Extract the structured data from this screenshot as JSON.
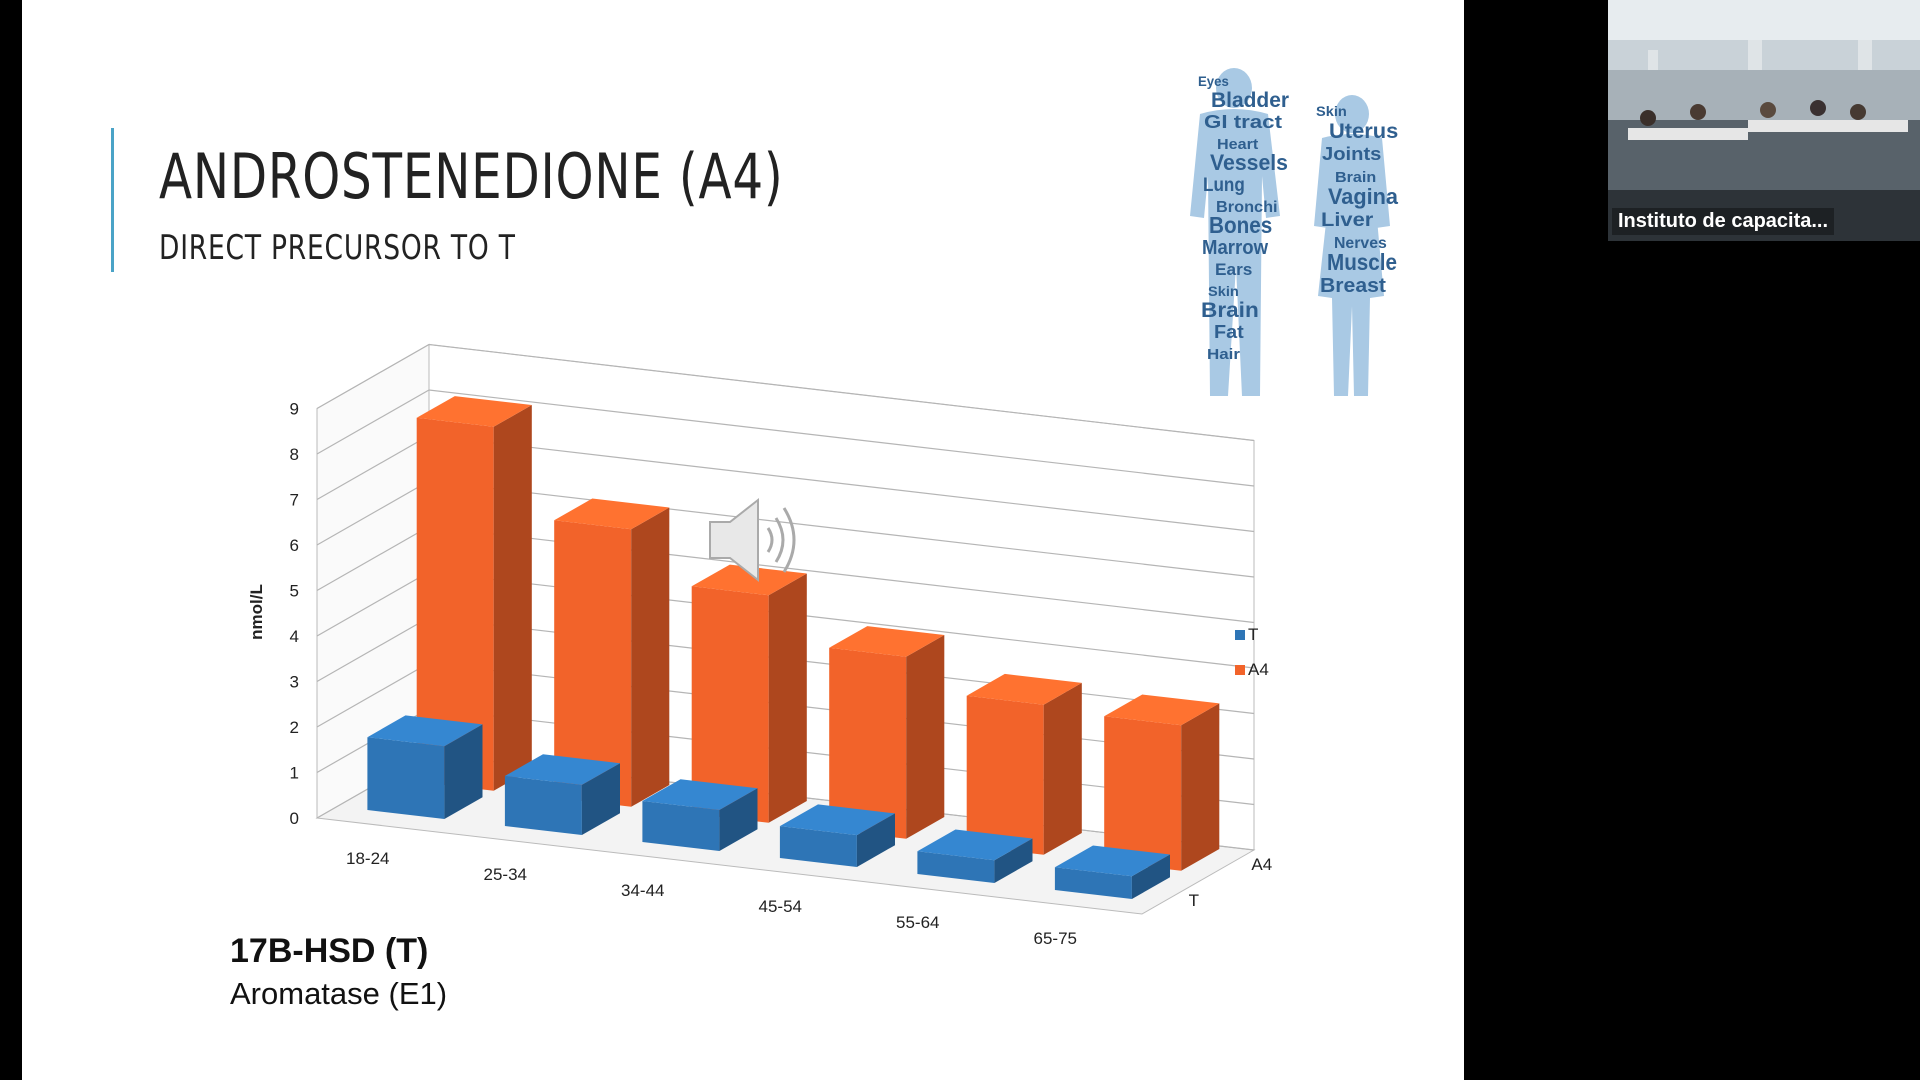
{
  "slide": {
    "title": "ANDROSTENEDIONE (A4)",
    "subtitle": "DIRECT PRECURSOR TO T",
    "footnote_bold": "17B-HSD (T)",
    "footnote": "Aromatase (E1)"
  },
  "wordcloud": {
    "male_words": [
      "Eyes",
      "Bladder",
      "GI tract",
      "Heart",
      "Vessels",
      "Lung",
      "Bronchi",
      "Bones",
      "Marrow",
      "Ears",
      "Skin",
      "Brain",
      "Fat",
      "Hair"
    ],
    "female_words": [
      "Skin",
      "Uterus",
      "Joints",
      "Brain",
      "Vagina",
      "Liver",
      "Nerves",
      "Muscle",
      "Breast"
    ]
  },
  "webcam": {
    "caption": "Instituto de capacita..."
  },
  "chart_data": {
    "type": "bar",
    "categories": [
      "18-24",
      "25-34",
      "34-44",
      "45-54",
      "55-64",
      "65-75"
    ],
    "series": [
      {
        "name": "T",
        "values": [
          1.6,
          1.1,
          0.9,
          0.7,
          0.5,
          0.5
        ],
        "color": "#2e75b6"
      },
      {
        "name": "A4",
        "values": [
          8.0,
          6.1,
          5.0,
          4.0,
          3.3,
          3.2
        ],
        "color": "#f2632a"
      }
    ],
    "depth_labels": [
      "A4",
      "T"
    ],
    "ylabel": "nmol/L",
    "ylim": [
      0,
      9
    ],
    "yticks": [
      0,
      1,
      2,
      3,
      4,
      5,
      6,
      7,
      8,
      9
    ],
    "grid": true,
    "legend_position": "right"
  }
}
